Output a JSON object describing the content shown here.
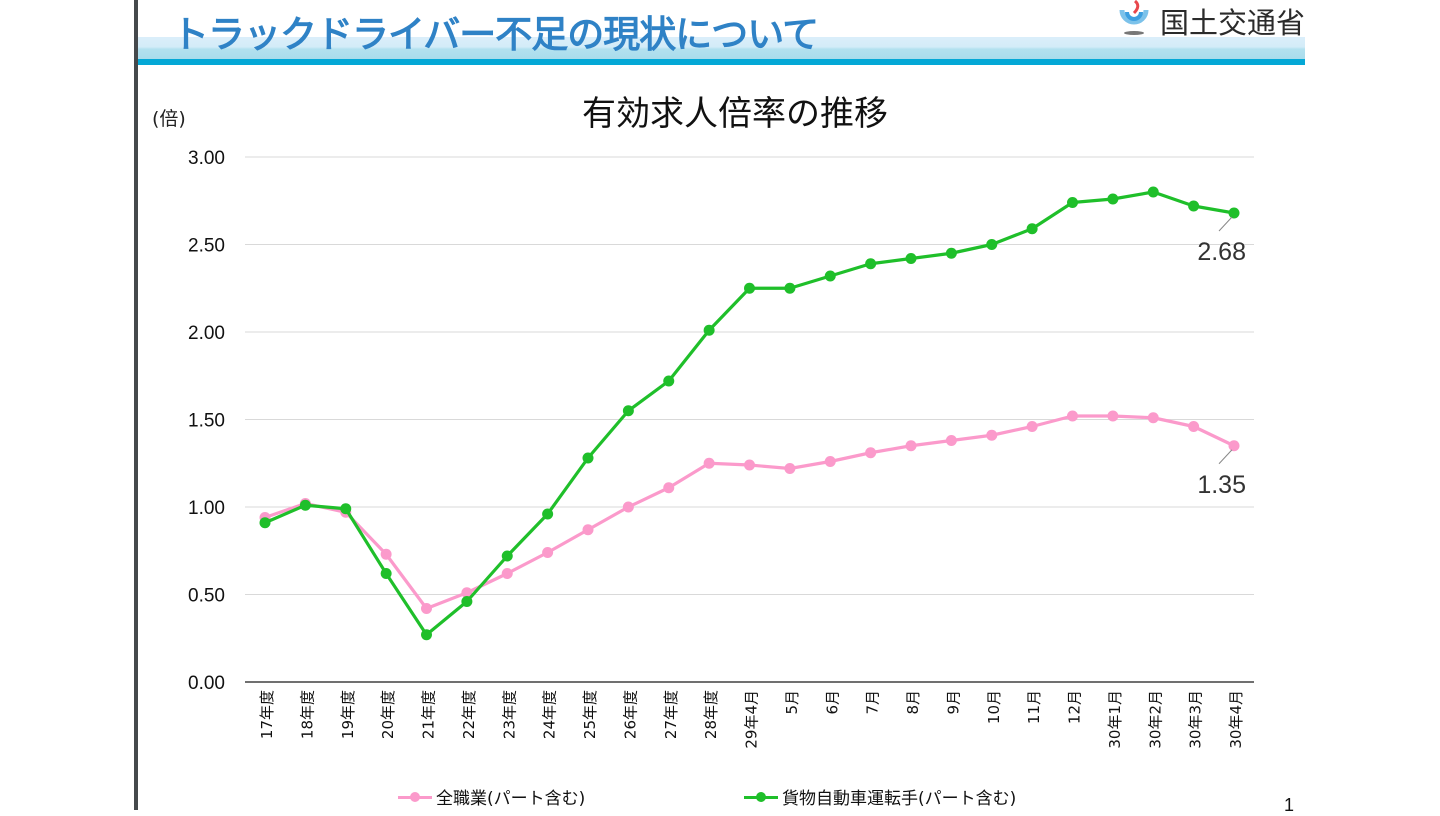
{
  "header": {
    "title": "トラックドライバー不足の現状について",
    "organization": "国土交通省",
    "logo_icon": "mlit-logo-icon"
  },
  "colors": {
    "title_blue": "#2f82c6",
    "banner_line": "#04a8d6",
    "series_all": "#fb9acb",
    "series_truck": "#1fbf2a",
    "grid": "#d9d9d9"
  },
  "page_number": "1",
  "chart_data": {
    "type": "line",
    "title": "有効求人倍率の推移",
    "ylabel": "(倍)",
    "xlabel": "",
    "ylim": [
      0,
      3
    ],
    "yticks": [
      "0.00",
      "0.50",
      "1.00",
      "1.50",
      "2.00",
      "2.50",
      "3.00"
    ],
    "grid": true,
    "legend_position": "bottom",
    "categories": [
      "17年度",
      "18年度",
      "19年度",
      "20年度",
      "21年度",
      "22年度",
      "23年度",
      "24年度",
      "25年度",
      "26年度",
      "27年度",
      "28年度",
      "29年4月",
      "5月",
      "6月",
      "7月",
      "8月",
      "9月",
      "10月",
      "11月",
      "12月",
      "30年1月",
      "30年2月",
      "30年3月",
      "30年4月"
    ],
    "series": [
      {
        "name": "全職業(パート含む)",
        "color": "#fb9acb",
        "values": [
          0.94,
          1.02,
          0.97,
          0.73,
          0.42,
          0.51,
          0.62,
          0.74,
          0.87,
          1.0,
          1.11,
          1.25,
          1.24,
          1.22,
          1.26,
          1.31,
          1.35,
          1.38,
          1.41,
          1.46,
          1.52,
          1.52,
          1.51,
          1.46,
          1.35
        ],
        "end_label": "1.35"
      },
      {
        "name": "貨物自動車運転手(パート含む)",
        "color": "#1fbf2a",
        "values": [
          0.91,
          1.01,
          0.99,
          0.62,
          0.27,
          0.46,
          0.72,
          0.96,
          1.28,
          1.55,
          1.72,
          2.01,
          2.25,
          2.25,
          2.32,
          2.39,
          2.42,
          2.45,
          2.5,
          2.59,
          2.74,
          2.76,
          2.8,
          2.72,
          2.68
        ],
        "end_label": "2.68"
      }
    ]
  }
}
